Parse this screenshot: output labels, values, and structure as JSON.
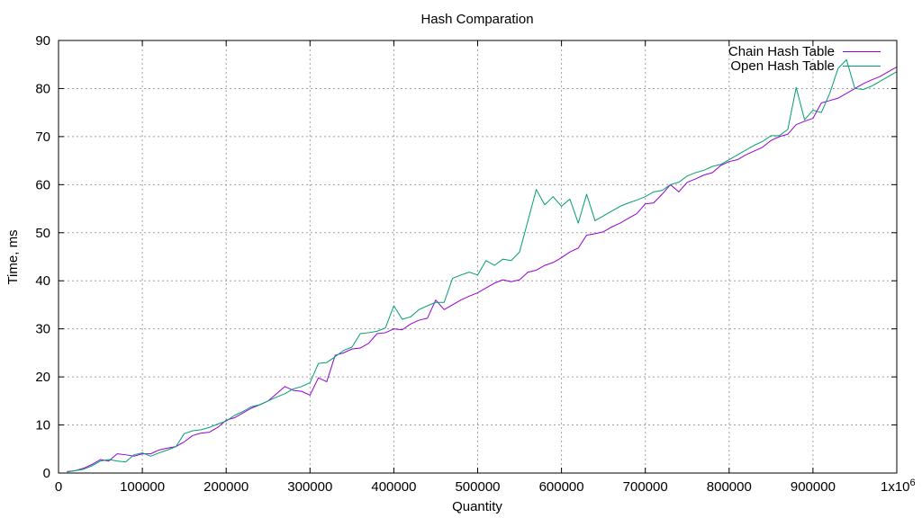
{
  "chart_data": {
    "type": "line",
    "title": "Hash Comparation",
    "xlabel": "Quantity",
    "ylabel": "Time, ms",
    "xlim": [
      0,
      1000000
    ],
    "ylim": [
      0,
      90
    ],
    "x_ticks": [
      0,
      100000,
      200000,
      300000,
      400000,
      500000,
      600000,
      700000,
      800000,
      900000,
      1000000
    ],
    "x_tick_labels": [
      "0",
      "100000",
      "200000",
      "300000",
      "400000",
      "500000",
      "600000",
      "700000",
      "800000",
      "900000",
      "1x10"
    ],
    "x_last_tick_exponent": "6",
    "y_ticks": [
      0,
      10,
      20,
      30,
      40,
      50,
      60,
      70,
      80,
      90
    ],
    "y_tick_labels": [
      "0",
      "10",
      "20",
      "30",
      "40",
      "50",
      "60",
      "70",
      "80",
      "90"
    ],
    "grid": true,
    "legend_position": "top-right",
    "series": [
      {
        "name": "Chain Hash Table",
        "color": "#9400d3",
        "x": [
          10000,
          20000,
          30000,
          40000,
          50000,
          60000,
          70000,
          80000,
          90000,
          100000,
          110000,
          120000,
          130000,
          140000,
          150000,
          160000,
          170000,
          180000,
          190000,
          200000,
          210000,
          220000,
          230000,
          240000,
          250000,
          260000,
          270000,
          280000,
          290000,
          300000,
          310000,
          320000,
          330000,
          340000,
          350000,
          360000,
          370000,
          380000,
          390000,
          400000,
          410000,
          420000,
          430000,
          440000,
          450000,
          460000,
          470000,
          480000,
          490000,
          500000,
          510000,
          520000,
          530000,
          540000,
          550000,
          560000,
          570000,
          580000,
          590000,
          600000,
          610000,
          620000,
          630000,
          640000,
          650000,
          660000,
          670000,
          680000,
          690000,
          700000,
          710000,
          720000,
          730000,
          740000,
          750000,
          760000,
          770000,
          780000,
          790000,
          800000,
          810000,
          820000,
          830000,
          840000,
          850000,
          860000,
          870000,
          880000,
          890000,
          900000,
          910000,
          920000,
          930000,
          940000,
          950000,
          960000,
          970000,
          980000,
          990000,
          1000000
        ],
        "y": [
          0.3,
          0.5,
          1.0,
          1.8,
          2.8,
          2.5,
          4.0,
          3.8,
          3.5,
          4.0,
          4.0,
          4.8,
          5.2,
          5.5,
          6.5,
          7.8,
          8.3,
          8.5,
          9.5,
          11.0,
          11.5,
          12.5,
          13.5,
          14.2,
          15.0,
          16.5,
          18.0,
          17.2,
          17.0,
          16.2,
          19.8,
          19.0,
          24.5,
          25.0,
          25.8,
          26.0,
          27.0,
          29.0,
          29.2,
          30.0,
          29.8,
          31.0,
          31.8,
          32.2,
          36.0,
          34.0,
          35.0,
          36.0,
          36.8,
          37.5,
          38.5,
          39.5,
          40.2,
          39.8,
          40.2,
          41.8,
          42.2,
          43.2,
          43.8,
          44.8,
          46.0,
          46.8,
          49.5,
          49.8,
          50.2,
          51.2,
          52.0,
          53.0,
          54.0,
          56.0,
          56.2,
          58.0,
          60.0,
          58.5,
          60.5,
          61.2,
          62.0,
          62.5,
          64.0,
          64.8,
          65.2,
          66.2,
          67.0,
          67.8,
          69.2,
          70.0,
          70.5,
          72.5,
          73.2,
          73.8,
          77.0,
          77.5,
          78.0,
          79.0,
          80.0,
          81.0,
          81.8,
          82.5,
          83.5,
          84.5
        ]
      },
      {
        "name": "Open Hash Table",
        "color": "#009e73",
        "x": [
          10000,
          20000,
          30000,
          40000,
          50000,
          60000,
          70000,
          80000,
          90000,
          100000,
          110000,
          120000,
          130000,
          140000,
          150000,
          160000,
          170000,
          180000,
          190000,
          200000,
          210000,
          220000,
          230000,
          240000,
          250000,
          260000,
          270000,
          280000,
          290000,
          300000,
          310000,
          320000,
          330000,
          340000,
          350000,
          360000,
          370000,
          380000,
          390000,
          400000,
          410000,
          420000,
          430000,
          440000,
          450000,
          460000,
          470000,
          480000,
          490000,
          500000,
          510000,
          520000,
          530000,
          540000,
          550000,
          560000,
          570000,
          580000,
          590000,
          600000,
          610000,
          620000,
          630000,
          640000,
          650000,
          660000,
          670000,
          680000,
          690000,
          700000,
          710000,
          720000,
          730000,
          740000,
          750000,
          760000,
          770000,
          780000,
          790000,
          800000,
          810000,
          820000,
          830000,
          840000,
          850000,
          860000,
          870000,
          880000,
          890000,
          900000,
          910000,
          920000,
          930000,
          940000,
          950000,
          960000,
          970000,
          980000,
          990000,
          1000000
        ],
        "y": [
          0.2,
          0.5,
          0.8,
          1.5,
          2.5,
          2.8,
          2.5,
          2.3,
          3.8,
          4.2,
          3.5,
          4.2,
          4.8,
          5.5,
          8.2,
          8.8,
          9.0,
          9.5,
          10.2,
          10.8,
          12.0,
          12.8,
          13.8,
          14.2,
          15.0,
          15.8,
          16.5,
          17.5,
          18.0,
          18.8,
          22.8,
          23.0,
          24.2,
          25.5,
          26.2,
          29.0,
          29.2,
          29.5,
          30.2,
          34.8,
          32.0,
          32.5,
          34.0,
          34.8,
          35.5,
          35.5,
          40.5,
          41.2,
          41.8,
          41.2,
          44.2,
          43.2,
          44.5,
          44.2,
          46.0,
          52.5,
          59.0,
          55.8,
          57.5,
          55.5,
          57.0,
          52.0,
          58.0,
          52.5,
          53.5,
          54.5,
          55.5,
          56.2,
          56.8,
          57.5,
          58.5,
          58.8,
          60.0,
          60.5,
          61.8,
          62.5,
          63.0,
          63.8,
          64.2,
          65.2,
          66.2,
          67.2,
          68.2,
          69.0,
          70.2,
          70.2,
          71.5,
          80.2,
          73.5,
          75.5,
          75.0,
          79.0,
          84.2,
          86.0,
          80.0,
          79.8,
          80.5,
          81.5,
          82.5,
          83.5
        ]
      }
    ]
  }
}
